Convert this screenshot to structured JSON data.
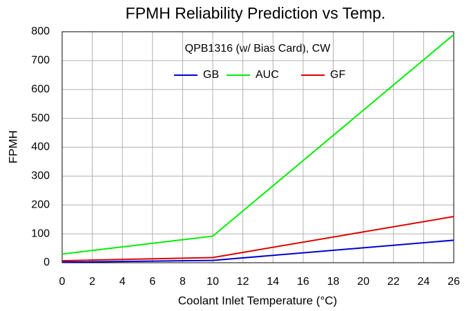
{
  "chart_data": {
    "type": "line",
    "title": "FPMH Reliability Prediction vs Temp.",
    "annotation": "QPB1316 (w/ Bias Card), CW",
    "x_label": "Coolant Inlet Temperature (°C)",
    "y_label": "FPMH",
    "x": [
      0,
      10,
      26
    ],
    "series": [
      {
        "name": "GB",
        "color": "#0000cc",
        "values": [
          2,
          8,
          78
        ]
      },
      {
        "name": "AUC",
        "color": "#00ee00",
        "values": [
          30,
          92,
          790
        ]
      },
      {
        "name": "GF",
        "color": "#dd0000",
        "values": [
          7,
          18,
          160
        ]
      }
    ],
    "xlim": [
      0,
      26
    ],
    "xticks": [
      0,
      2,
      4,
      6,
      8,
      10,
      12,
      14,
      16,
      18,
      20,
      22,
      24,
      26
    ],
    "ylim": [
      0,
      800
    ],
    "yticks": [
      0,
      100,
      200,
      300,
      400,
      500,
      600,
      700,
      800
    ],
    "grid": true,
    "legend": "top"
  }
}
